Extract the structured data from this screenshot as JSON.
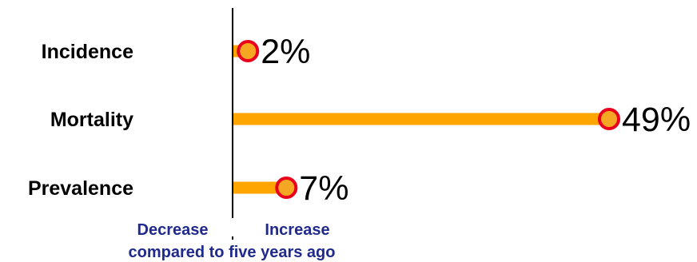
{
  "chart_data": {
    "type": "bar",
    "orientation": "horizontal",
    "style": "lollipop",
    "categories": [
      "Incidence",
      "Mortality",
      "Prevalence"
    ],
    "values": [
      2,
      49,
      7
    ],
    "value_labels": [
      "2%",
      "49%",
      "7%"
    ],
    "unit": "%",
    "xlim": [
      0,
      49
    ],
    "grid": false,
    "annotations": {
      "decrease": "Decrease",
      "increase": "Increase",
      "baseline_caption": "compared to five years ago"
    },
    "colors": {
      "bar": "#FFA500",
      "marker_fill": "#F5A623",
      "marker_stroke": "#E8001C",
      "annotation_text": "#1F2A8C",
      "axis": "#000000"
    }
  }
}
